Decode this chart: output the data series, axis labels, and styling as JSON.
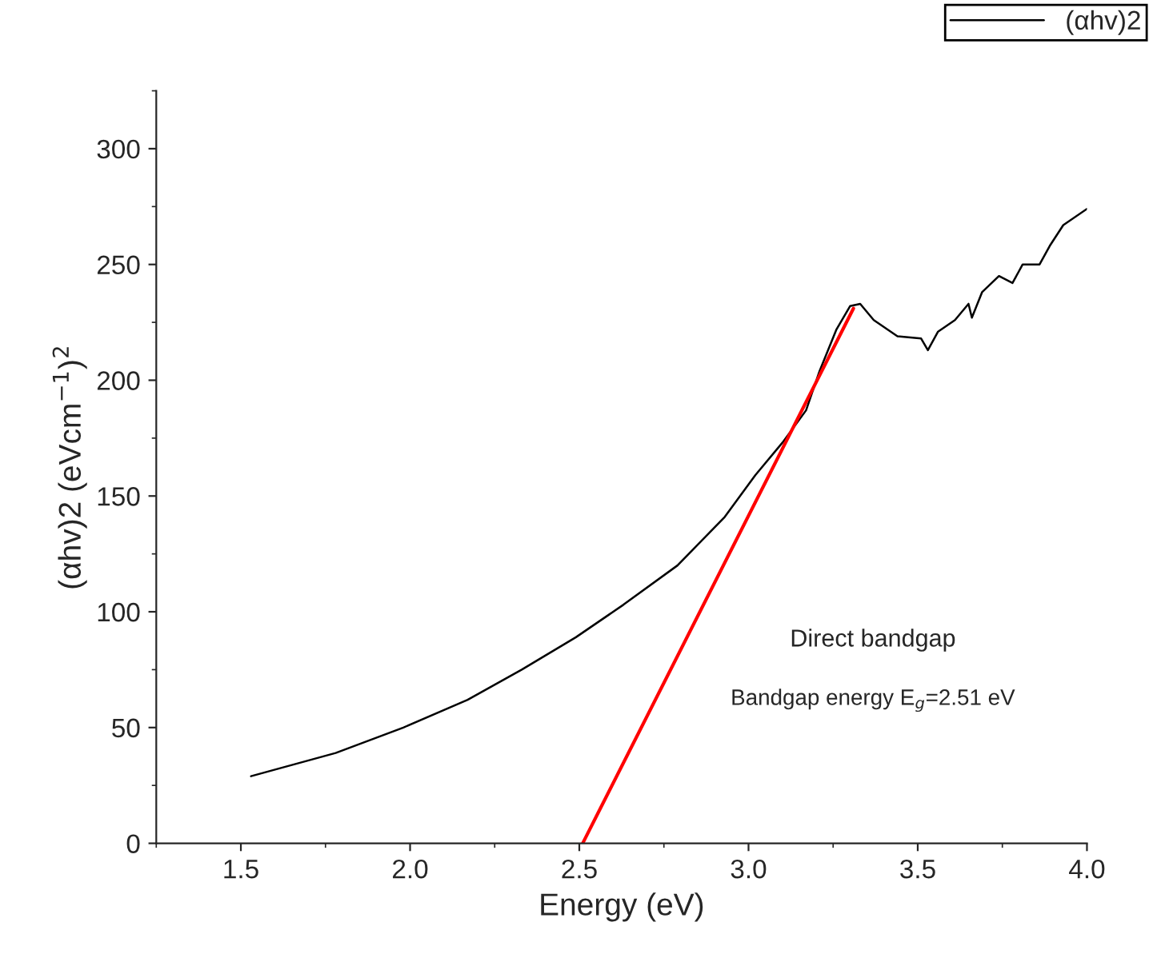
{
  "chart_data": {
    "type": "line",
    "xlabel": "Energy (eV)",
    "ylabel": "(αhv)2 (eVcm$^{−1}$)$^{2}$",
    "series": [
      {
        "name": "(αhv)2",
        "color": "#000000",
        "x": [
          1.53,
          1.78,
          1.98,
          2.17,
          2.33,
          2.49,
          2.63,
          2.79,
          2.93,
          3.02,
          3.1,
          3.17,
          3.21,
          3.26,
          3.3,
          3.33,
          3.37,
          3.44,
          3.51,
          3.53,
          3.56,
          3.61,
          3.65,
          3.66,
          3.69,
          3.74,
          3.78,
          3.81,
          3.86,
          3.89,
          3.93,
          4.0
        ],
        "values": [
          29,
          39,
          50,
          62,
          75,
          89,
          103,
          120,
          141,
          159,
          173,
          187,
          204,
          222,
          232,
          233,
          226,
          219,
          218,
          213,
          221,
          226,
          233,
          227,
          238,
          245,
          242,
          250,
          250,
          258,
          267,
          274
        ]
      },
      {
        "type": "line",
        "color": "#ff0000",
        "x": [
          2.51,
          3.31
        ],
        "values": [
          0,
          231
        ]
      }
    ],
    "xlim": [
      1.25,
      4.0
    ],
    "ylim": [
      0,
      325
    ],
    "xticks": [
      {
        "value": 1.5,
        "label": "1.5"
      },
      {
        "value": 2,
        "label": "2.0"
      },
      {
        "value": 2.5,
        "label": "2.5"
      },
      {
        "value": 3,
        "label": "3.0"
      },
      {
        "value": 3.5,
        "label": "3.5"
      },
      {
        "value": 4,
        "label": "4.0"
      }
    ],
    "yticks": [
      0,
      50,
      100,
      150,
      200,
      250,
      300
    ],
    "annotations": [
      "Direct bandgap",
      "Bandgap energy E$_{g}$=2.51 eV"
    ],
    "legend": "top right",
    "grid": false
  }
}
